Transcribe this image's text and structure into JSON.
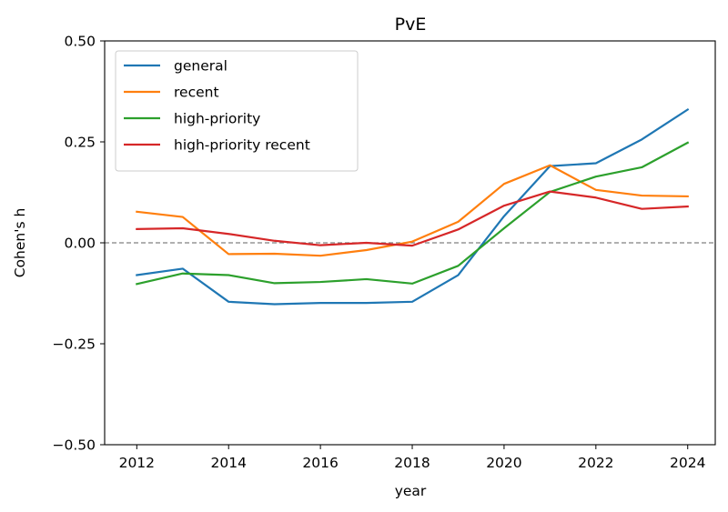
{
  "chart_data": {
    "type": "line",
    "title": "PvE",
    "xlabel": "year",
    "ylabel": "Cohen's h",
    "xlim": [
      2011.3,
      2024.6
    ],
    "ylim": [
      -0.5,
      0.5
    ],
    "x_ticks": [
      2012,
      2014,
      2016,
      2018,
      2020,
      2022,
      2024
    ],
    "y_ticks": [
      -0.5,
      -0.25,
      0.0,
      0.25,
      0.5
    ],
    "y_tick_labels": [
      "−0.50",
      "−0.25",
      "0.00",
      "0.25",
      "0.50"
    ],
    "grid": false,
    "legend_position": "top-left",
    "reference_line": {
      "y": 0.0,
      "style": "dashed",
      "color": "#808080"
    },
    "x": [
      2012,
      2013,
      2014,
      2015,
      2016,
      2017,
      2018,
      2019,
      2020,
      2021,
      2022,
      2023,
      2024
    ],
    "series": [
      {
        "name": "general",
        "color": "#1f77b4",
        "values": [
          -0.08,
          -0.064,
          -0.146,
          -0.152,
          -0.149,
          -0.149,
          -0.146,
          -0.08,
          0.066,
          0.19,
          0.197,
          0.256,
          0.33
        ]
      },
      {
        "name": "recent",
        "color": "#ff7f0e",
        "values": [
          0.077,
          0.064,
          -0.028,
          -0.027,
          -0.032,
          -0.018,
          0.003,
          0.052,
          0.146,
          0.192,
          0.131,
          0.117,
          0.115
        ]
      },
      {
        "name": "high-priority",
        "color": "#2ca02c",
        "values": [
          -0.102,
          -0.076,
          -0.08,
          -0.1,
          -0.097,
          -0.09,
          -0.101,
          -0.057,
          0.036,
          0.126,
          0.164,
          0.187,
          0.248
        ]
      },
      {
        "name": "high-priority recent",
        "color": "#d62728",
        "values": [
          0.034,
          0.036,
          0.022,
          0.005,
          -0.006,
          0.0,
          -0.007,
          0.033,
          0.092,
          0.127,
          0.112,
          0.084,
          0.09
        ]
      }
    ]
  }
}
